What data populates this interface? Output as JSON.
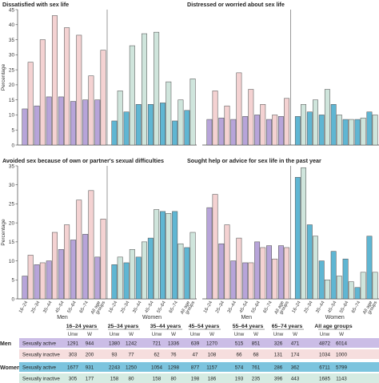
{
  "colors": {
    "men_active": "#b7a4d9",
    "men_inactive": "#f4d2d2",
    "women_active": "#5fb6d3",
    "women_inactive": "#cfe5dc",
    "bar_edge": "#555555",
    "row_men_active": "#cbbde6",
    "row_men_inactive": "#f6dede",
    "row_women_active": "#7cc4de",
    "row_women_inactive": "#d6ebe2"
  },
  "chart_data": [
    {
      "type": "bar",
      "title": "Dissatisfied with sex life",
      "ylabel": "Percentage",
      "ylim": [
        0,
        45
      ],
      "yticks": [
        0,
        5,
        10,
        15,
        20,
        25,
        30,
        35,
        40,
        45
      ],
      "categories": [
        "16–24",
        "25–34",
        "35–44",
        "45–54",
        "55–64",
        "65–74",
        "All age groups"
      ],
      "groups": [
        {
          "name": "Men",
          "series": [
            {
              "name": "Sexually active",
              "values": [
                12,
                13,
                16,
                16,
                14.5,
                15,
                15
              ]
            },
            {
              "name": "Sexually inactive",
              "values": [
                27.5,
                35,
                43,
                39,
                36.5,
                23,
                31.5
              ]
            }
          ]
        },
        {
          "name": "Women",
          "series": [
            {
              "name": "Sexually active",
              "values": [
                8,
                11,
                13.5,
                13.5,
                14,
                8,
                11.5
              ]
            },
            {
              "name": "Sexually inactive",
              "values": [
                18,
                33,
                37,
                37.5,
                21,
                15,
                22
              ]
            }
          ]
        }
      ]
    },
    {
      "type": "bar",
      "title": "Distressed or worried about sex life",
      "ylabel": "Percentage",
      "ylim": [
        0,
        45
      ],
      "yticks": [
        0,
        5,
        10,
        15,
        20,
        25,
        30,
        35,
        40,
        45
      ],
      "categories": [
        "16–24",
        "25–34",
        "35–44",
        "45–54",
        "55–64",
        "65–74",
        "All age groups"
      ],
      "groups": [
        {
          "name": "Men",
          "series": [
            {
              "name": "Sexually active",
              "values": [
                8.5,
                9,
                8.5,
                9.5,
                10,
                8.5,
                9.5
              ]
            },
            {
              "name": "Sexually inactive",
              "values": [
                18,
                13,
                24,
                18.5,
                13.5,
                10,
                15.5
              ]
            }
          ]
        },
        {
          "name": "Women",
          "series": [
            {
              "name": "Sexually active",
              "values": [
                9.5,
                11,
                10,
                13.5,
                8.5,
                8.5,
                11
              ]
            },
            {
              "name": "Sexually inactive",
              "values": [
                13.5,
                15,
                18.5,
                10,
                8.5,
                9,
                10
              ]
            }
          ]
        }
      ]
    },
    {
      "type": "bar",
      "title": "Avoided sex because of own or partner's sexual difficulties",
      "ylabel": "Percentage",
      "ylim": [
        0,
        35
      ],
      "yticks": [
        0,
        5,
        10,
        15,
        20,
        25,
        30,
        35
      ],
      "categories": [
        "16–24",
        "25–34",
        "35–44",
        "45–54",
        "55–64",
        "65–74",
        "All age groups"
      ],
      "groups": [
        {
          "name": "Men",
          "series": [
            {
              "name": "Sexually active",
              "values": [
                6,
                9,
                10,
                13,
                15.5,
                17,
                11
              ]
            },
            {
              "name": "Sexually inactive",
              "values": [
                11.5,
                9.5,
                17.5,
                19.5,
                26,
                28.5,
                21
              ]
            }
          ]
        },
        {
          "name": "Women",
          "series": [
            {
              "name": "Sexually active",
              "values": [
                9,
                9.5,
                11,
                16,
                23,
                23,
                13.5
              ]
            },
            {
              "name": "Sexually inactive",
              "values": [
                11,
                13,
                15,
                23.5,
                22.5,
                14.5,
                17.5
              ]
            }
          ]
        }
      ]
    },
    {
      "type": "bar",
      "title": "Sought help or advice for sex life in the past year",
      "ylabel": "Percentage",
      "ylim": [
        0,
        35
      ],
      "yticks": [
        0,
        5,
        10,
        15,
        20,
        25,
        30,
        35
      ],
      "categories": [
        "16–24",
        "25–34",
        "35–44",
        "45–54",
        "55–64",
        "65–74",
        "All age groups"
      ],
      "groups": [
        {
          "name": "Men",
          "series": [
            {
              "name": "Sexually active",
              "values": [
                24,
                14.5,
                10,
                9.5,
                15,
                14,
                14
              ]
            },
            {
              "name": "Sexually inactive",
              "values": [
                27.5,
                19.5,
                16,
                9.5,
                13.5,
                10.5,
                13.5
              ]
            }
          ]
        },
        {
          "name": "Women",
          "series": [
            {
              "name": "Sexually active",
              "values": [
                32,
                19.5,
                10,
                12.5,
                10.5,
                3,
                16.5
              ]
            },
            {
              "name": "Sexually inactive",
              "values": [
                34.5,
                16.5,
                5,
                6,
                4.5,
                7,
                7
              ]
            }
          ]
        }
      ]
    }
  ],
  "axis_groups": [
    "Men",
    "Women"
  ],
  "table": {
    "age_groups": [
      "16–24 years",
      "25–34 years",
      "35–44 years",
      "45–54 years",
      "55–64 years",
      "65–74 years",
      "All age groups"
    ],
    "col_labels": [
      "Unw",
      "W"
    ],
    "sections": [
      {
        "name": "Men",
        "rows": [
          {
            "label": "Sexually active",
            "values": [
              [
                "1291",
                "944"
              ],
              [
                "1380",
                "1242"
              ],
              [
                "721",
                "1336"
              ],
              [
                "639",
                "1270"
              ],
              [
                "515",
                "851"
              ],
              [
                "326",
                "471"
              ],
              [
                "4872",
                "6014"
              ]
            ]
          },
          {
            "label": "Sexually inactive",
            "values": [
              [
                "303",
                "200"
              ],
              [
                "93",
                "77"
              ],
              [
                "62",
                "76"
              ],
              [
                "47",
                "108"
              ],
              [
                "66",
                "68"
              ],
              [
                "131",
                "174"
              ],
              [
                "1034",
                "1000"
              ]
            ]
          }
        ]
      },
      {
        "name": "Women",
        "rows": [
          {
            "label": "Sexually active",
            "values": [
              [
                "1677",
                "931"
              ],
              [
                "2243",
                "1250"
              ],
              [
                "1054",
                "1298"
              ],
              [
                "877",
                "1157"
              ],
              [
                "574",
                "761"
              ],
              [
                "286",
                "362"
              ],
              [
                "6711",
                "5799"
              ]
            ]
          },
          {
            "label": "Sexually inactive",
            "values": [
              [
                "305",
                "177"
              ],
              [
                "158",
                "80"
              ],
              [
                "158",
                "80"
              ],
              [
                "198",
                "186"
              ],
              [
                "193",
                "235"
              ],
              [
                "396",
                "443"
              ],
              [
                "1685",
                "1143"
              ]
            ]
          }
        ]
      }
    ]
  }
}
